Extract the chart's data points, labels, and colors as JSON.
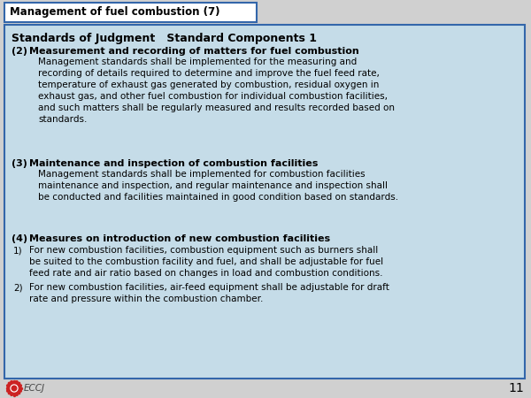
{
  "title": "Management of fuel combustion (7)",
  "header": "Standards of Judgment   Standard Components 1",
  "bg_color": "#c5dce8",
  "title_bg": "#ffffff",
  "outer_bg": "#d0d0d0",
  "border_color": "#3366aa",
  "page_number": "11",
  "eccj_text": "ECCJ",
  "title_fontsize": 8.5,
  "header_fontsize": 9.0,
  "heading_fontsize": 8.0,
  "body_fontsize": 7.5,
  "section2_heading": "Measurement and recording of matters for fuel combustion",
  "section2_body": "Management standards shall be implemented for the measuring and\nrecording of details required to determine and improve the fuel feed rate,\ntemperature of exhaust gas generated by combustion, residual oxygen in\nexhaust gas, and other fuel combustion for individual combustion facilities,\nand such matters shall be regularly measured and results recorded based on\nstandards.",
  "section3_heading": "Maintenance and inspection of combustion facilities",
  "section3_body": "Management standards shall be implemented for combustion facilities\nmaintenance and inspection, and regular maintenance and inspection shall\nbe conducted and facilities maintained in good condition based on standards.",
  "section4_heading": "Measures on introduction of new combustion facilities",
  "section4_item1": "For new combustion facilities, combustion equipment such as burners shall\nbe suited to the combustion facility and fuel, and shall be adjustable for fuel\nfeed rate and air ratio based on changes in load and combustion conditions.",
  "section4_item2": "For new combustion facilities, air-feed equipment shall be adjustable for draft\nrate and pressure within the combustion chamber."
}
